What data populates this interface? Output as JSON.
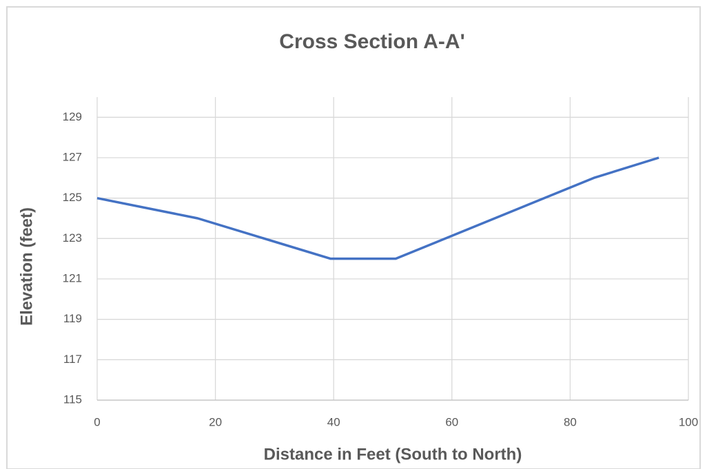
{
  "chart_data": {
    "type": "line",
    "title": "Cross Section A-A'",
    "xlabel": "Distance in Feet (South to North)",
    "ylabel": "Elevation (feet)",
    "x": [
      0,
      17,
      39.5,
      50.5,
      84,
      95
    ],
    "series": [
      {
        "color": "#4472c4",
        "values": [
          125,
          124,
          122,
          122,
          126,
          127
        ]
      }
    ],
    "xlim": [
      0,
      100
    ],
    "xticks": [
      0,
      20,
      40,
      60,
      80,
      100
    ],
    "ylim": [
      115,
      130
    ],
    "yticks": [
      115,
      117,
      119,
      121,
      123,
      125,
      127,
      129
    ],
    "grid": true
  }
}
